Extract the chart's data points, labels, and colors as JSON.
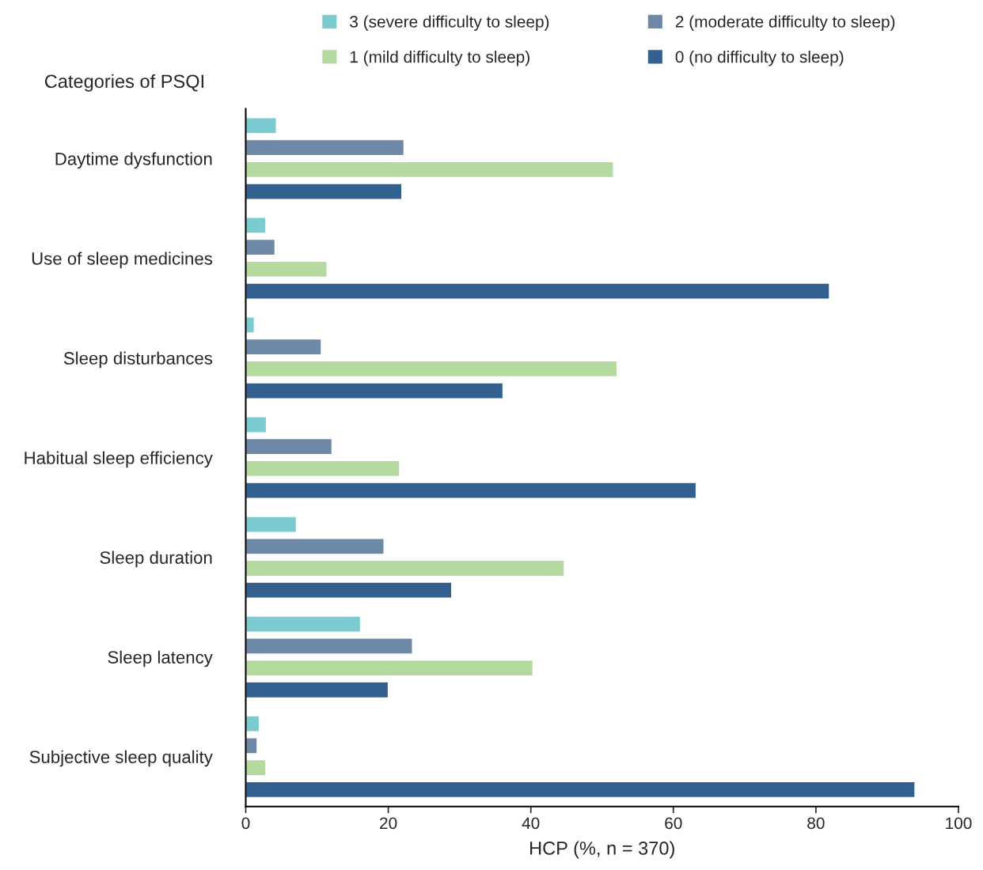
{
  "chart_data": {
    "type": "bar",
    "orientation": "horizontal",
    "ylabel": "Categories of PSQI",
    "xlabel": "HCP (%, n = 370)",
    "categories": [
      "Daytime dysfunction",
      "Use of sleep medicines",
      "Sleep disturbances",
      "Habitual sleep efficiency",
      "Sleep duration",
      "Sleep latency",
      "Subjective sleep quality"
    ],
    "series": [
      {
        "name": "3 (severe difficulty to sleep)",
        "color": "#7ccbd0",
        "values": [
          4.3,
          2.8,
          1.2,
          2.9,
          7.1,
          16.1,
          1.9
        ]
      },
      {
        "name": "2 (moderate difficulty to sleep)",
        "color": "#6e88a8",
        "values": [
          22.2,
          4.1,
          10.6,
          12.1,
          19.4,
          23.4,
          1.6
        ]
      },
      {
        "name": "1 (mild difficulty to sleep)",
        "color": "#b5da9f",
        "values": [
          51.6,
          11.4,
          52.1,
          21.6,
          44.7,
          40.3,
          2.8
        ]
      },
      {
        "name": "0 (no difficulty to sleep)",
        "color": "#33608f",
        "values": [
          21.9,
          81.9,
          36.1,
          63.2,
          28.9,
          20.0,
          93.9
        ]
      }
    ],
    "xlim": [
      0,
      100
    ],
    "xticks": [
      0,
      20,
      40,
      60,
      80,
      100
    ],
    "grid": false,
    "legend": "top"
  }
}
